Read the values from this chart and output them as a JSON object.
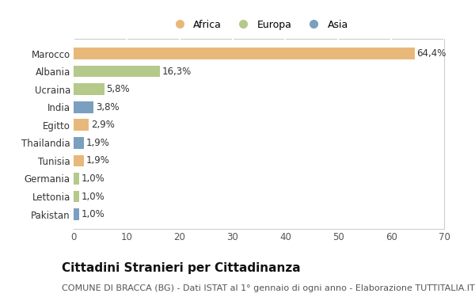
{
  "categories": [
    "Marocco",
    "Albania",
    "Ucraina",
    "India",
    "Egitto",
    "Thailandia",
    "Tunisia",
    "Germania",
    "Lettonia",
    "Pakistan"
  ],
  "values": [
    64.4,
    16.3,
    5.8,
    3.8,
    2.9,
    1.9,
    1.9,
    1.0,
    1.0,
    1.0
  ],
  "labels": [
    "64,4%",
    "16,3%",
    "5,8%",
    "3,8%",
    "2,9%",
    "1,9%",
    "1,9%",
    "1,0%",
    "1,0%",
    "1,0%"
  ],
  "colors": [
    "#E8B87A",
    "#B5C98A",
    "#B5C98A",
    "#7A9FBF",
    "#E8B87A",
    "#7A9FBF",
    "#E8B87A",
    "#B5C98A",
    "#B5C98A",
    "#7A9FBF"
  ],
  "legend_labels": [
    "Africa",
    "Europa",
    "Asia"
  ],
  "legend_colors": [
    "#E8B87A",
    "#B5C98A",
    "#7A9FBF"
  ],
  "title": "Cittadini Stranieri per Cittadinanza",
  "subtitle": "COMUNE DI BRACCA (BG) - Dati ISTAT al 1° gennaio di ogni anno - Elaborazione TUTTITALIA.IT",
  "xlim": [
    0,
    70
  ],
  "xticks": [
    0,
    10,
    20,
    30,
    40,
    50,
    60,
    70
  ],
  "background_color": "#FFFFFF",
  "grid_color": "#FFFFFF",
  "title_fontsize": 11,
  "subtitle_fontsize": 8,
  "label_fontsize": 8.5,
  "tick_fontsize": 8.5
}
